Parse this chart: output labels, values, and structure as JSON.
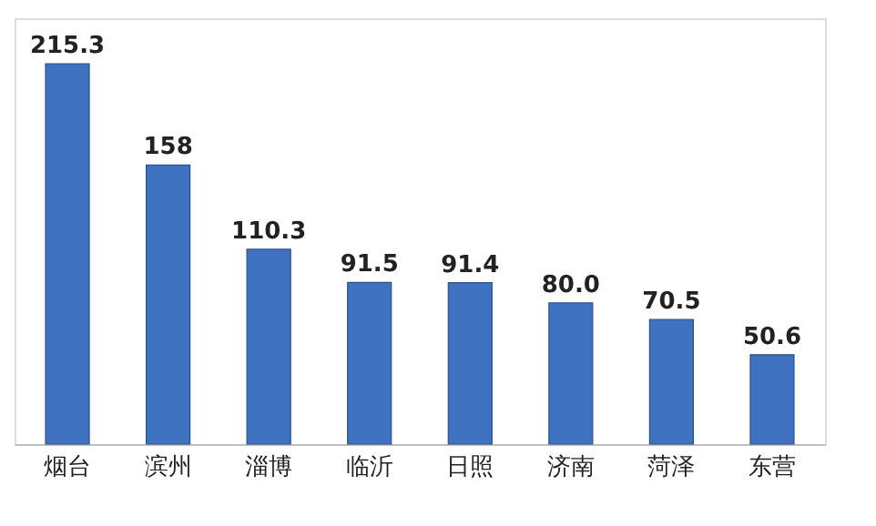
{
  "chart_data": {
    "type": "bar",
    "categories": [
      "烟台",
      "滨州",
      "淄博",
      "临沂",
      "日照",
      "济南",
      "菏泽",
      "东营"
    ],
    "values": [
      215.3,
      158,
      110.3,
      91.5,
      91.4,
      80.0,
      70.5,
      50.6
    ],
    "value_labels": [
      "215.3",
      "158",
      "110.3",
      "91.5",
      "91.4",
      "80.0",
      "70.5",
      "50.6"
    ],
    "color": "#3f72c0",
    "grid": false
  }
}
